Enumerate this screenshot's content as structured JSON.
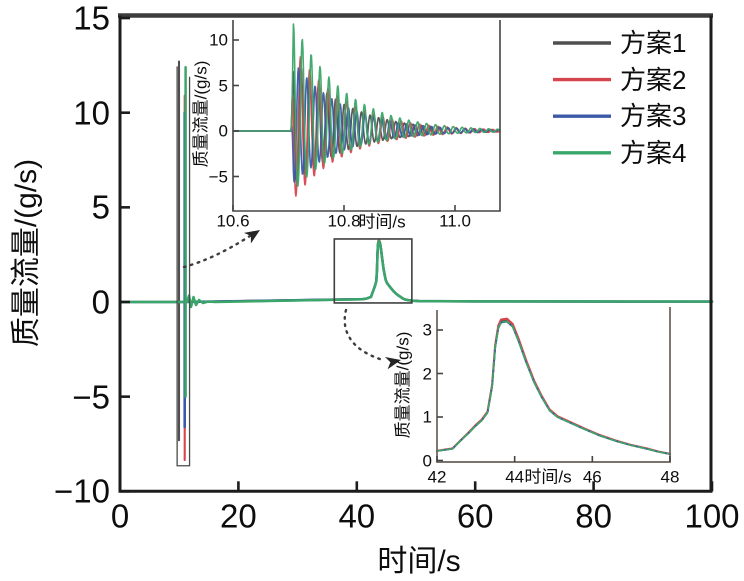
{
  "figure": {
    "background": "#ffffff",
    "axis_color": "#1c1c1c",
    "main_axes": {
      "xlabel": "时间/s",
      "ylabel": "质量流量/(g/s)",
      "xticks": [
        "0",
        "20",
        "40",
        "60",
        "80",
        "100"
      ],
      "xtick_values": [
        0,
        20,
        40,
        60,
        80,
        100
      ],
      "yticks": [
        "15",
        "10",
        "5",
        "0",
        "−5",
        "−10"
      ],
      "ytick_values": [
        15,
        10,
        5,
        0,
        -5,
        -10
      ],
      "xlim": [
        0,
        100
      ],
      "ylim": [
        -10,
        15
      ]
    },
    "legend": {
      "position": "top-right",
      "entries": [
        {
          "label": "方案1",
          "color": "#4f4f4f"
        },
        {
          "label": "方案2",
          "color": "#d6454e"
        },
        {
          "label": "方案3",
          "color": "#3c59a8"
        },
        {
          "label": "方案4",
          "color": "#3aa768"
        }
      ]
    },
    "inset_top": {
      "xlabel": "时间/s",
      "ylabel": "质量流量/(g/s)",
      "xticks": [
        "10.6",
        "10.8",
        "11.0"
      ],
      "xtick_values": [
        10.6,
        10.8,
        11.0
      ],
      "yticks": [
        "10",
        "5",
        "0",
        "−5"
      ],
      "ytick_values": [
        10,
        5,
        0,
        -5
      ],
      "xlim": [
        10.6,
        11.09
      ],
      "ylim": [
        -8.9,
        12.1
      ]
    },
    "inset_bottom": {
      "xlabel": "时间/s",
      "ylabel": "质量流量/(g/s)",
      "xticks": [
        "42",
        "44",
        "46",
        "48"
      ],
      "xtick_values": [
        42,
        44,
        46,
        48
      ],
      "yticks": [
        "0",
        "1",
        "2",
        "3"
      ],
      "ytick_values": [
        0,
        1,
        2,
        3
      ],
      "xlim": [
        42,
        48
      ],
      "ylim": [
        0,
        3.5
      ]
    }
  },
  "chart_data": [
    {
      "id": "main",
      "type": "line",
      "title": "",
      "xlabel": "时间/s",
      "ylabel": "质量流量/(g/s)",
      "xlim": [
        0,
        100
      ],
      "ylim": [
        -10,
        15
      ],
      "grid": false,
      "legend_position": "top-right",
      "baseline": 0,
      "series": [
        {
          "name": "方案1",
          "color": "#4f4f4f",
          "spike": {
            "x": 9.97,
            "top": 12.7,
            "bottom": -7.3
          }
        },
        {
          "name": "方案2",
          "color": "#d6454e",
          "spike": {
            "x": 10.93,
            "top": 10.9,
            "bottom": -8.35
          }
        },
        {
          "name": "方案3",
          "color": "#3c59a8",
          "spike": {
            "x": 10.93,
            "top": 10.0,
            "bottom": -6.6
          }
        },
        {
          "name": "方案4",
          "color": "#3aa768",
          "spike": {
            "x": 11.08,
            "top": 12.4,
            "bottom": -5.0
          }
        }
      ],
      "bump_x": [
        41.0,
        41.6,
        42.0,
        42.4,
        42.6,
        42.8,
        43.0,
        43.15,
        43.3,
        43.42,
        43.5,
        43.58,
        43.65,
        43.8,
        43.95,
        44.1,
        44.3,
        44.5,
        44.7,
        44.9,
        45.1,
        45.4,
        45.8,
        46.2,
        46.6,
        47.0,
        47.4,
        47.7,
        48.0,
        48.6,
        49.4,
        50.5,
        60.0,
        100.0
      ],
      "bump_y": [
        0.15,
        0.18,
        0.22,
        0.27,
        0.45,
        0.62,
        0.8,
        0.92,
        1.1,
        1.7,
        2.6,
        3.05,
        3.18,
        3.2,
        3.08,
        2.75,
        2.25,
        1.8,
        1.45,
        1.15,
        1.0,
        0.88,
        0.72,
        0.57,
        0.45,
        0.35,
        0.27,
        0.2,
        0.15,
        0.1,
        0.07,
        0.05,
        0.03,
        0.02
      ],
      "annotations": {
        "spike_zoom_box": {
          "x": [
            9.65,
            11.75
          ],
          "y": [
            -8.65,
            12.45
          ]
        },
        "bump_zoom_box": {
          "x": [
            36.2,
            49.3
          ],
          "y": [
            -0.05,
            3.33
          ]
        },
        "zoom_arrows": [
          "spike-box to top inset",
          "bump-box to bottom inset"
        ]
      }
    },
    {
      "id": "inset_top",
      "type": "line",
      "xlabel": "时间/s",
      "ylabel": "质量流量/(g/s)",
      "xlim": [
        10.6,
        11.09
      ],
      "ylim": [
        -8.9,
        12.1
      ],
      "oscillation": {
        "t_start": 10.705,
        "decay_tau": 0.09,
        "series": [
          {
            "name": "方案1",
            "color": "#4f4f4f",
            "amp": 8.5,
            "period": 0.0155,
            "phase": 0.6,
            "neg_scale": 0.75
          },
          {
            "name": "方案2",
            "color": "#d6454e",
            "amp": 9.8,
            "period": 0.0165,
            "phase": 1.5,
            "neg_scale": 0.8
          },
          {
            "name": "方案3",
            "color": "#3c59a8",
            "amp": 8.0,
            "period": 0.015,
            "phase": 2.4,
            "neg_scale": 0.75
          },
          {
            "name": "方案4",
            "color": "#3aa768",
            "amp": 12.6,
            "period": 0.016,
            "phase": 0.05,
            "neg_scale": 0.55
          }
        ]
      }
    },
    {
      "id": "inset_bottom",
      "type": "line",
      "xlabel": "时间/s",
      "ylabel": "质量流量/(g/s)",
      "xlim": [
        42,
        48
      ],
      "ylim": [
        0,
        3.45
      ],
      "x": [
        42.0,
        42.4,
        42.6,
        42.8,
        43.0,
        43.15,
        43.3,
        43.42,
        43.5,
        43.58,
        43.65,
        43.8,
        43.95,
        44.1,
        44.3,
        44.5,
        44.7,
        44.9,
        45.1,
        45.4,
        45.8,
        46.2,
        46.6,
        47.0,
        47.4,
        47.7,
        48.0
      ],
      "base_y": [
        0.22,
        0.27,
        0.45,
        0.62,
        0.8,
        0.92,
        1.1,
        1.7,
        2.6,
        3.05,
        3.18,
        3.2,
        3.08,
        2.75,
        2.25,
        1.8,
        1.45,
        1.15,
        1.0,
        0.88,
        0.72,
        0.57,
        0.45,
        0.35,
        0.27,
        0.2,
        0.15
      ],
      "series": [
        {
          "name": "方案1",
          "color": "#4f4f4f",
          "peak_offset": 0.02
        },
        {
          "name": "方案2",
          "color": "#d6454e",
          "peak_offset": 0.06
        },
        {
          "name": "方案3",
          "color": "#3c59a8",
          "peak_offset": -0.01
        },
        {
          "name": "方案4",
          "color": "#3aa768",
          "peak_offset": 0.0
        }
      ]
    }
  ]
}
